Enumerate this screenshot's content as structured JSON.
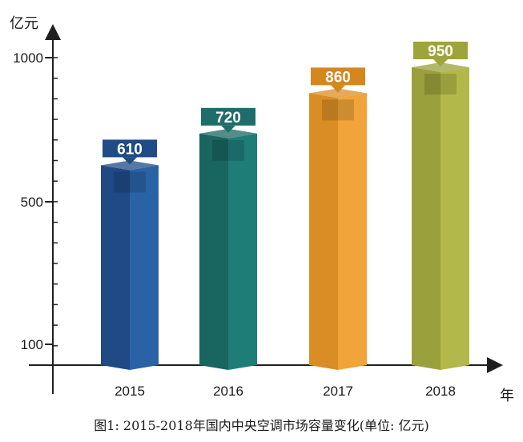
{
  "chart_data": {
    "type": "bar",
    "style": "3d-column",
    "categories": [
      "2015",
      "2016",
      "2017",
      "2018"
    ],
    "values": [
      610,
      720,
      860,
      950
    ],
    "data_labels": [
      "610",
      "720",
      "860",
      "950"
    ],
    "ylabel": "亿元",
    "xlabel": "年",
    "y_ticks": [
      "100",
      "500",
      "1000"
    ],
    "grid": false,
    "colors": {
      "bars": [
        "#2a62a6",
        "#1f7d78",
        "#f0a43a",
        "#b3b84a"
      ],
      "bars_dark": [
        "#1f4a85",
        "#196560",
        "#d98d24",
        "#9aa03b"
      ],
      "labels": [
        "#1f4b86",
        "#1f6d6a",
        "#d4861f",
        "#9da43b"
      ],
      "axis": "#1f1f1f"
    }
  },
  "caption": "图1: 2015-2018年国内中央空调市场容量变化(单位: 亿元)"
}
